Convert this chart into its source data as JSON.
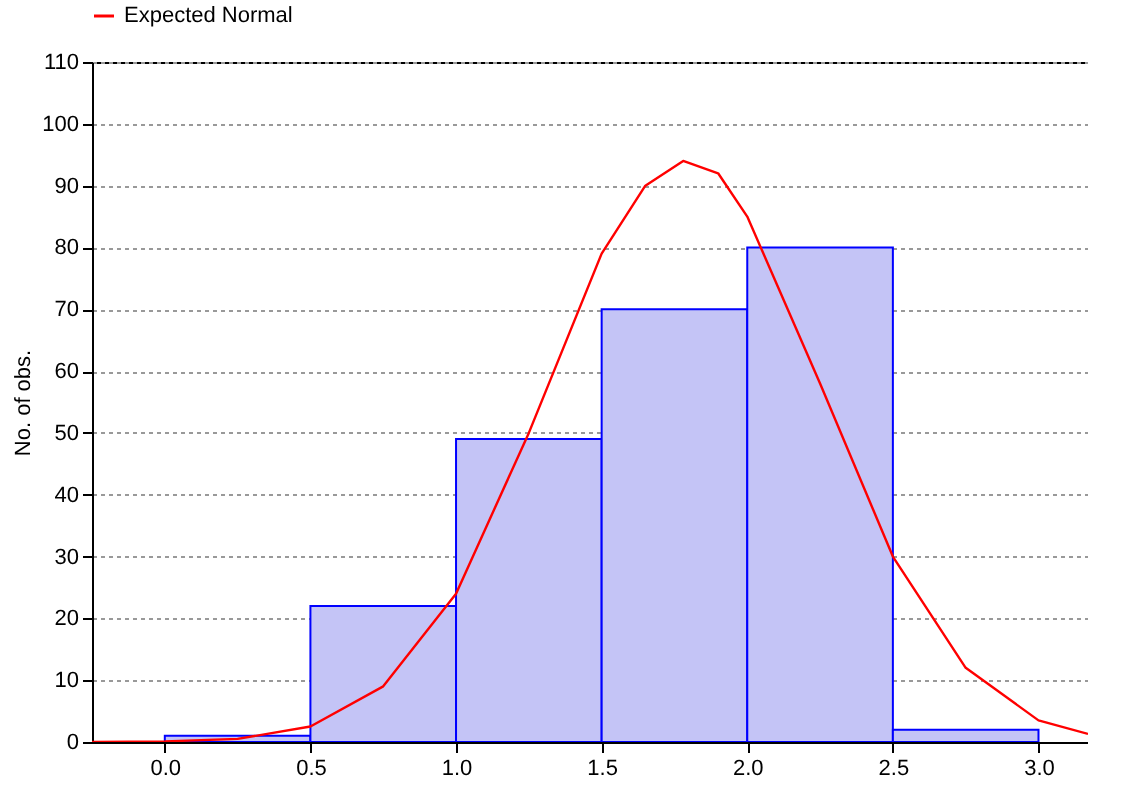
{
  "chart_data": {
    "type": "histogram",
    "ylabel": "No. of obs.",
    "bins": [
      0,
      0.5,
      1,
      1.5,
      2,
      2.5,
      3
    ],
    "values": [
      1,
      22,
      49,
      70,
      80,
      2
    ],
    "color": "#c4c4f6",
    "series": [
      {
        "type": "line",
        "name": "Expected Normal",
        "color": "#ff0000",
        "x": [
          -0.25,
          0,
          0.25,
          0.5,
          0.75,
          1,
          1.25,
          1.5,
          1.65,
          1.78,
          1.9,
          2,
          2.25,
          2.5,
          2.75,
          3,
          3.17
        ],
        "values": [
          0,
          0.1,
          0.5,
          2.5,
          9,
          24,
          50,
          79,
          90,
          94,
          92,
          85,
          58,
          30,
          12,
          3.5,
          1.3
        ]
      }
    ],
    "xlim": [
      -0.25,
      3.17
    ],
    "xticks": [
      {
        "value": 0,
        "label": "0.0"
      },
      {
        "value": 0.5,
        "label": "0.5"
      },
      {
        "value": 1,
        "label": "1.0"
      },
      {
        "value": 1.5,
        "label": "1.5"
      },
      {
        "value": 2,
        "label": "2.0"
      },
      {
        "value": 2.5,
        "label": "2.5"
      },
      {
        "value": 3,
        "label": "3.0"
      }
    ],
    "ylim": [
      0,
      110
    ],
    "yticks": [
      0,
      10,
      20,
      30,
      40,
      50,
      60,
      70,
      80,
      90,
      100,
      110
    ],
    "grid": "y",
    "legend": "top"
  }
}
